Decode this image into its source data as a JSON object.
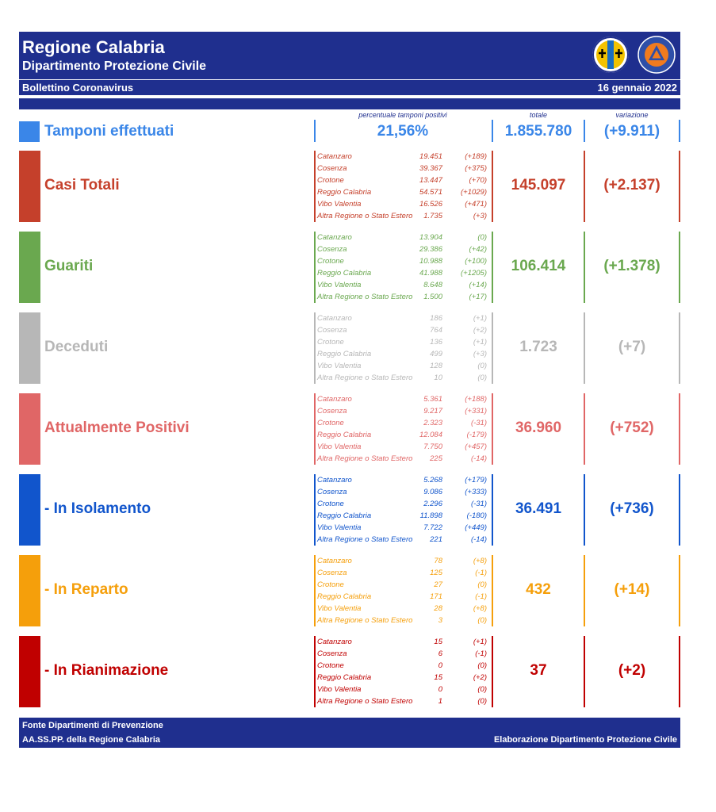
{
  "header": {
    "title": "Regione Calabria",
    "subtitle": "Dipartimento Protezione Civile",
    "bulletin": "Bollettino Coronavirus",
    "date": "16 gennaio 2022",
    "logo_text": "PROTEZIONE CIVILE · Regione Calabria"
  },
  "columns": {
    "pct_label": "percentuale tamponi positivi",
    "total_label": "totale",
    "variation_label": "variazione"
  },
  "tamponi": {
    "label": "Tamponi effettuati",
    "pct": "21,56%",
    "total": "1.855.780",
    "variation": "(+9.911)",
    "color": "#3a86e8"
  },
  "sections": [
    {
      "title": "Casi Totali",
      "color": "#c5402b",
      "total": "145.097",
      "variation": "(+2.137)",
      "rows": [
        {
          "name": "Catanzaro",
          "value": "19.451",
          "delta": "(+189)"
        },
        {
          "name": "Cosenza",
          "value": "39.367",
          "delta": "(+375)"
        },
        {
          "name": "Crotone",
          "value": "13.447",
          "delta": "(+70)"
        },
        {
          "name": "Reggio Calabria",
          "value": "54.571",
          "delta": "(+1029)"
        },
        {
          "name": "Vibo Valentia",
          "value": "16.526",
          "delta": "(+471)"
        },
        {
          "name": "Altra Regione o Stato Estero",
          "value": "1.735",
          "delta": "(+3)"
        }
      ]
    },
    {
      "title": "Guariti",
      "color": "#6aa84f",
      "total": "106.414",
      "variation": "(+1.378)",
      "rows": [
        {
          "name": "Catanzaro",
          "value": "13.904",
          "delta": "(0)"
        },
        {
          "name": "Cosenza",
          "value": "29.386",
          "delta": "(+42)"
        },
        {
          "name": "Crotone",
          "value": "10.988",
          "delta": "(+100)"
        },
        {
          "name": "Reggio Calabria",
          "value": "41.988",
          "delta": "(+1205)"
        },
        {
          "name": "Vibo Valentia",
          "value": "8.648",
          "delta": "(+14)"
        },
        {
          "name": "Altra Regione o Stato Estero",
          "value": "1.500",
          "delta": "(+17)"
        }
      ]
    },
    {
      "title": "Deceduti",
      "color": "#b7b7b7",
      "total": "1.723",
      "variation": "(+7)",
      "rows": [
        {
          "name": "Catanzaro",
          "value": "186",
          "delta": "(+1)"
        },
        {
          "name": "Cosenza",
          "value": "764",
          "delta": "(+2)"
        },
        {
          "name": "Crotone",
          "value": "136",
          "delta": "(+1)"
        },
        {
          "name": "Reggio Calabria",
          "value": "499",
          "delta": "(+3)"
        },
        {
          "name": "Vibo Valentia",
          "value": "128",
          "delta": "(0)"
        },
        {
          "name": "Altra Regione o Stato Estero",
          "value": "10",
          "delta": "(0)"
        }
      ]
    },
    {
      "title": "Attualmente Positivi",
      "color": "#e06666",
      "total": "36.960",
      "variation": "(+752)",
      "rows": [
        {
          "name": "Catanzaro",
          "value": "5.361",
          "delta": "(+188)"
        },
        {
          "name": "Cosenza",
          "value": "9.217",
          "delta": "(+331)"
        },
        {
          "name": "Crotone",
          "value": "2.323",
          "delta": "(-31)"
        },
        {
          "name": "Reggio Calabria",
          "value": "12.084",
          "delta": "(-179)"
        },
        {
          "name": "Vibo Valentia",
          "value": "7.750",
          "delta": "(+457)"
        },
        {
          "name": "Altra Regione o Stato Estero",
          "value": "225",
          "delta": "(-14)"
        }
      ]
    },
    {
      "title": " - In Isolamento",
      "color": "#1155cc",
      "total": "36.491",
      "variation": "(+736)",
      "rows": [
        {
          "name": "Catanzaro",
          "value": "5.268",
          "delta": "(+179)"
        },
        {
          "name": "Cosenza",
          "value": "9.086",
          "delta": "(+333)"
        },
        {
          "name": "Crotone",
          "value": "2.296",
          "delta": "(-31)"
        },
        {
          "name": "Reggio Calabria",
          "value": "11.898",
          "delta": "(-180)"
        },
        {
          "name": "Vibo Valentia",
          "value": "7.722",
          "delta": "(+449)"
        },
        {
          "name": "Altra Regione o Stato Estero",
          "value": "221",
          "delta": "(-14)"
        }
      ]
    },
    {
      "title": " - In Reparto",
      "color": "#f59f0b",
      "total": "432",
      "variation": "(+14)",
      "rows": [
        {
          "name": "Catanzaro",
          "value": "78",
          "delta": "(+8)"
        },
        {
          "name": "Cosenza",
          "value": "125",
          "delta": "(-1)"
        },
        {
          "name": "Crotone",
          "value": "27",
          "delta": "(0)"
        },
        {
          "name": "Reggio Calabria",
          "value": "171",
          "delta": "(-1)"
        },
        {
          "name": "Vibo Valentia",
          "value": "28",
          "delta": "(+8)"
        },
        {
          "name": "Altra Regione o Stato Estero",
          "value": "3",
          "delta": "(0)"
        }
      ]
    },
    {
      "title": " - In Rianimazione",
      "color": "#c00000",
      "total": "37",
      "variation": "(+2)",
      "rows": [
        {
          "name": "Catanzaro",
          "value": "15",
          "delta": "(+1)"
        },
        {
          "name": "Cosenza",
          "value": "6",
          "delta": "(-1)"
        },
        {
          "name": "Crotone",
          "value": "0",
          "delta": "(0)"
        },
        {
          "name": "Reggio Calabria",
          "value": "15",
          "delta": "(+2)"
        },
        {
          "name": "Vibo Valentia",
          "value": "0",
          "delta": "(0)"
        },
        {
          "name": "Altra Regione o Stato Estero",
          "value": "1",
          "delta": "(0)"
        }
      ]
    }
  ],
  "footer": {
    "source_line1": "Fonte Dipartimenti di Prevenzione",
    "source_line2": "AA.SS.PP.  della Regione Calabria",
    "elaboration": "Elaborazione Dipartimento Protezione Civile"
  }
}
